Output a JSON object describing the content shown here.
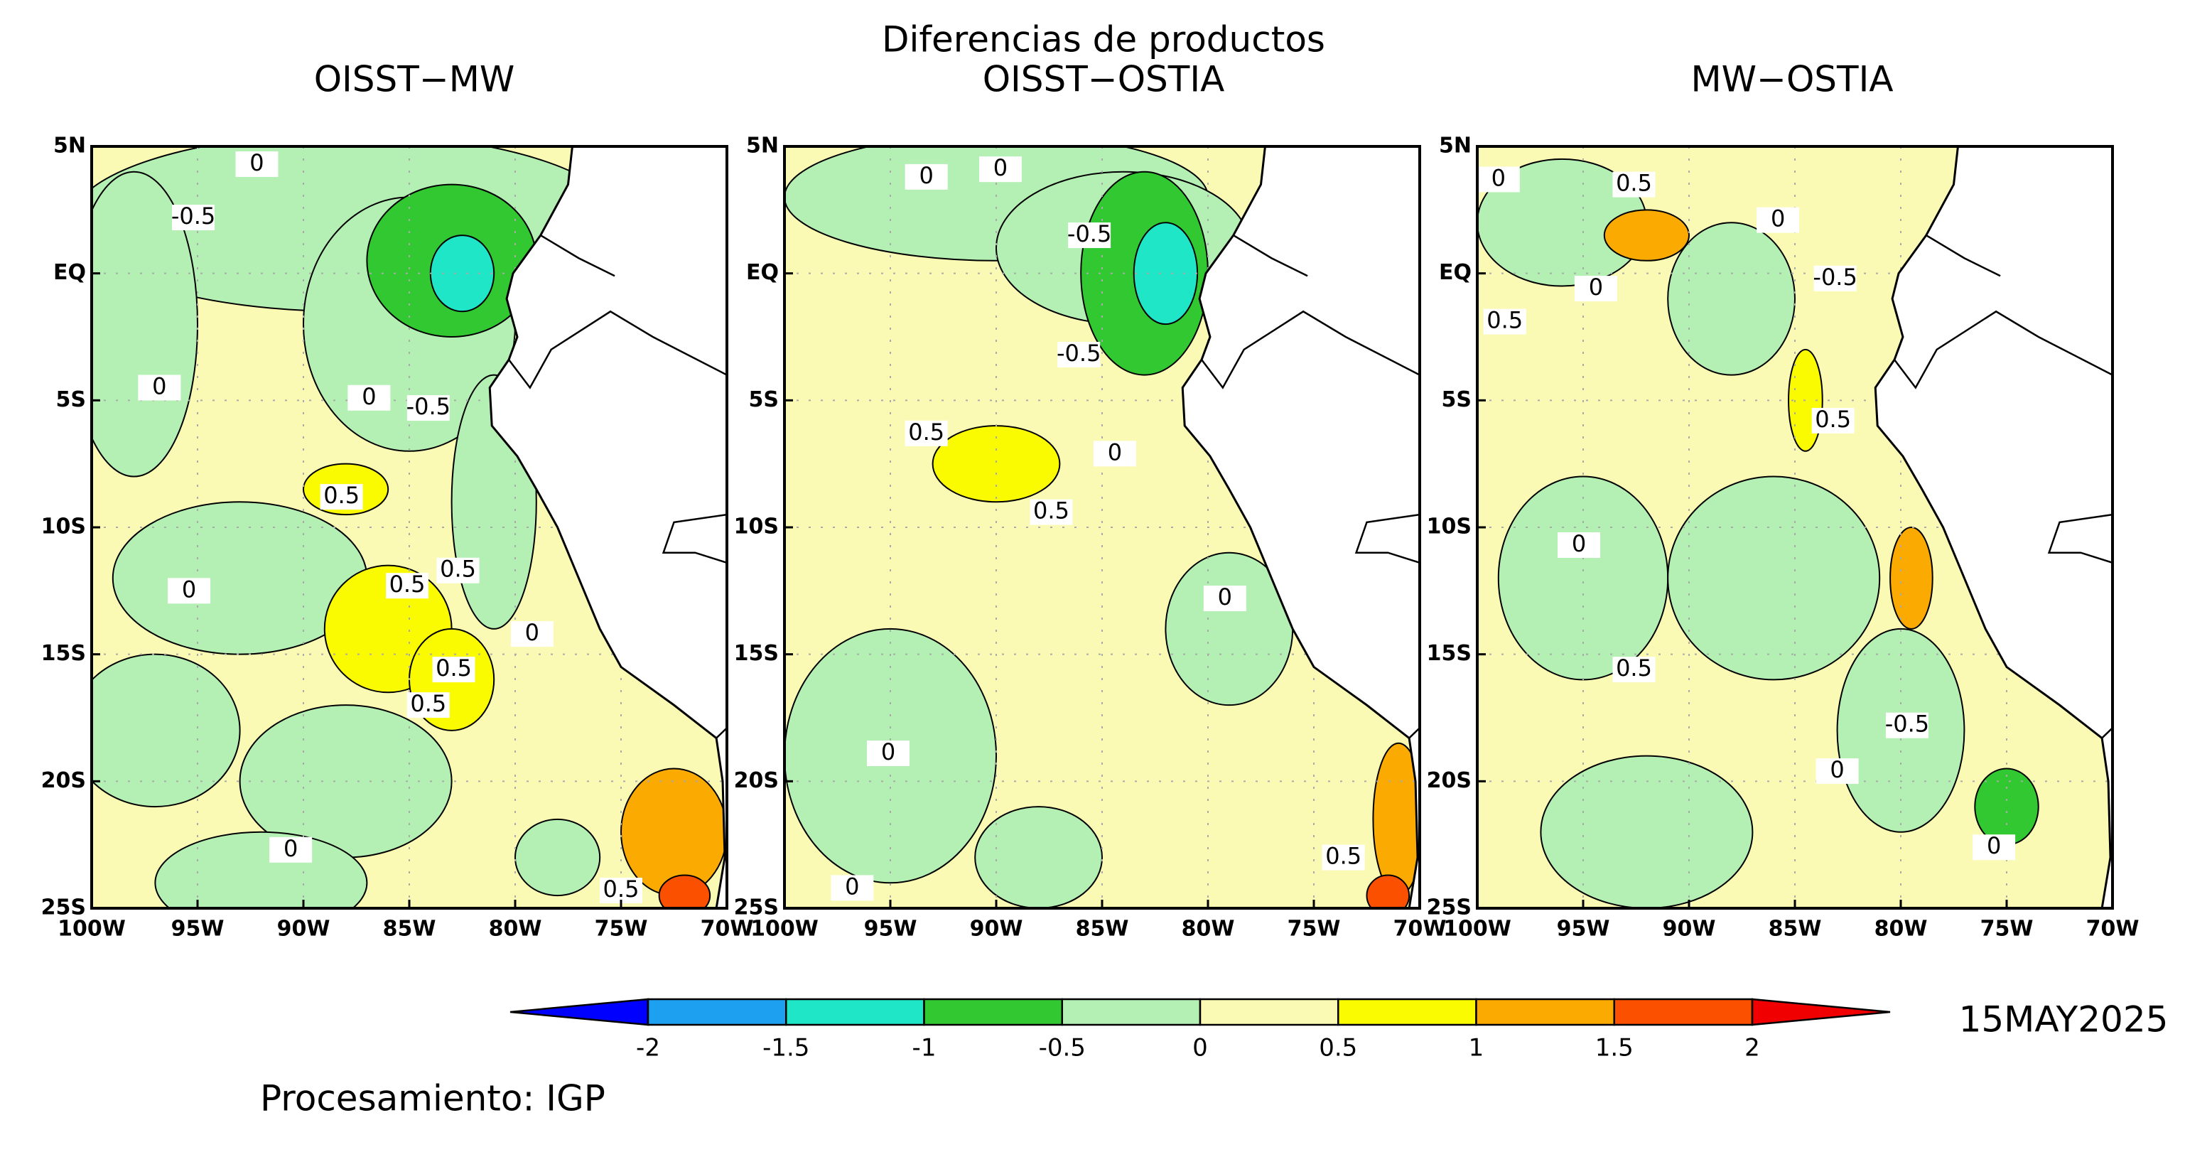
{
  "title": "Diferencias de productos",
  "map": {
    "xlim": [
      -100,
      -70
    ],
    "ylim": [
      -25,
      5
    ],
    "xticks": [
      {
        "value": -100,
        "label": "100W"
      },
      {
        "value": -95,
        "label": "95W"
      },
      {
        "value": -90,
        "label": "90W"
      },
      {
        "value": -85,
        "label": "85W"
      },
      {
        "value": -80,
        "label": "80W"
      },
      {
        "value": -75,
        "label": "75W"
      },
      {
        "value": -70,
        "label": "70W"
      }
    ],
    "yticks": [
      {
        "value": 5,
        "label": "5N"
      },
      {
        "value": 0,
        "label": "EQ"
      },
      {
        "value": -5,
        "label": "5S"
      },
      {
        "value": -10,
        "label": "10S"
      },
      {
        "value": -15,
        "label": "15S"
      },
      {
        "value": -20,
        "label": "20S"
      },
      {
        "value": -25,
        "label": "25S"
      }
    ],
    "grid": true
  },
  "panels": [
    {
      "subtitle": "OISST−MW",
      "contour_labels": [
        {
          "value": 0,
          "lon": -92.2,
          "lat": 4.3
        },
        {
          "value": -0.5,
          "lon": -95.2,
          "lat": 2.2
        },
        {
          "value": 0,
          "lon": -96.8,
          "lat": -4.5
        },
        {
          "value": 0,
          "lon": -86.9,
          "lat": -4.9
        },
        {
          "value": -0.5,
          "lon": -84.1,
          "lat": -5.3
        },
        {
          "value": 0.5,
          "lon": -88.2,
          "lat": -8.8
        },
        {
          "value": 0.5,
          "lon": -85.1,
          "lat": -12.3
        },
        {
          "value": 0.5,
          "lon": -82.7,
          "lat": -11.7
        },
        {
          "value": 0,
          "lon": -95.4,
          "lat": -12.5
        },
        {
          "value": 0.5,
          "lon": -82.9,
          "lat": -15.6
        },
        {
          "value": 0.5,
          "lon": -84.1,
          "lat": -17
        },
        {
          "value": 0,
          "lon": -79.2,
          "lat": -14.2
        },
        {
          "value": 0.5,
          "lon": -75,
          "lat": -24.3
        },
        {
          "value": 0,
          "lon": -90.6,
          "lat": -22.7
        }
      ]
    },
    {
      "subtitle": "OISST−OSTIA",
      "contour_labels": [
        {
          "value": 0,
          "lon": -93.3,
          "lat": 3.8
        },
        {
          "value": 0,
          "lon": -89.8,
          "lat": 4.1
        },
        {
          "value": -0.5,
          "lon": -85.6,
          "lat": 1.5
        },
        {
          "value": -0.5,
          "lon": -86.1,
          "lat": -3.2
        },
        {
          "value": 0.5,
          "lon": -93.3,
          "lat": -6.3
        },
        {
          "value": 0.5,
          "lon": -87.4,
          "lat": -9.4
        },
        {
          "value": 0,
          "lon": -84.4,
          "lat": -7.1
        },
        {
          "value": 0,
          "lon": -79.2,
          "lat": -12.8
        },
        {
          "value": 0,
          "lon": -95.1,
          "lat": -18.9
        },
        {
          "value": 0.5,
          "lon": -73.6,
          "lat": -23
        },
        {
          "value": 0,
          "lon": -96.8,
          "lat": -24.2
        }
      ]
    },
    {
      "subtitle": "MW−OSTIA",
      "contour_labels": [
        {
          "value": 0,
          "lon": -99,
          "lat": 3.7
        },
        {
          "value": 0.5,
          "lon": -92.6,
          "lat": 3.5
        },
        {
          "value": 0,
          "lon": -85.8,
          "lat": 2.1
        },
        {
          "value": -0.5,
          "lon": -83.1,
          "lat": -0.2
        },
        {
          "value": 0.5,
          "lon": -98.7,
          "lat": -1.9
        },
        {
          "value": 0,
          "lon": -94.4,
          "lat": -0.6
        },
        {
          "value": 0.5,
          "lon": -83.2,
          "lat": -5.8
        },
        {
          "value": 0,
          "lon": -95.2,
          "lat": -10.7
        },
        {
          "value": -0.5,
          "lon": -79.7,
          "lat": -17.8
        },
        {
          "value": 0,
          "lon": -83,
          "lat": -19.6
        },
        {
          "value": 0,
          "lon": -75.6,
          "lat": -22.6
        },
        {
          "value": 0.5,
          "lon": -92.6,
          "lat": -15.6
        }
      ]
    }
  ],
  "colorbar": {
    "levels": [
      -2,
      -1.5,
      -1,
      -0.5,
      0,
      0.5,
      1,
      1.5,
      2
    ],
    "colors": [
      "#0000ff",
      "#1ea0f0",
      "#20e6c8",
      "#32c832",
      "#b4f0b4",
      "#fafab4",
      "#fafa00",
      "#faaa00",
      "#fa5000",
      "#f00000"
    ]
  },
  "date": "15MAY2025",
  "credit": "Procesamiento: IGP"
}
